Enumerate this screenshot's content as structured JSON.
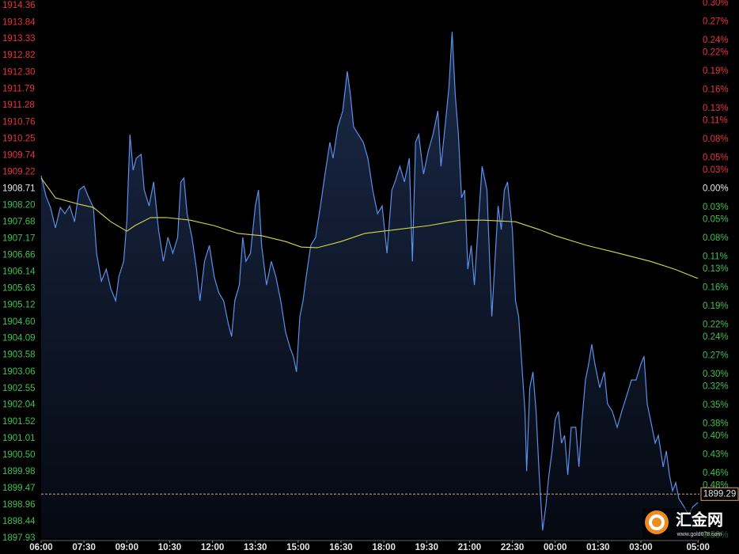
{
  "chart_data": {
    "type": "line",
    "xlim": [
      0,
      23.05
    ],
    "xticks": [
      {
        "value": 0,
        "label": "06:00"
      },
      {
        "value": 1.5,
        "label": "07:30"
      },
      {
        "value": 3,
        "label": "09:00"
      },
      {
        "value": 4.5,
        "label": "10:30"
      },
      {
        "value": 6,
        "label": "12:00"
      },
      {
        "value": 7.5,
        "label": "13:30"
      },
      {
        "value": 9,
        "label": "15:00"
      },
      {
        "value": 10.5,
        "label": "16:30"
      },
      {
        "value": 12,
        "label": "18:00"
      },
      {
        "value": 13.5,
        "label": "19:30"
      },
      {
        "value": 15,
        "label": "21:00"
      },
      {
        "value": 16.5,
        "label": "22:30"
      },
      {
        "value": 18,
        "label": "00:00"
      },
      {
        "value": 19.5,
        "label": "01:30"
      },
      {
        "value": 21,
        "label": "03:00"
      },
      {
        "value": 23,
        "label": "05:00"
      }
    ],
    "ylim": [
      1897.93,
      1914.36
    ],
    "yticks": [
      1914.36,
      1913.84,
      1913.33,
      1912.82,
      {
        "value": 1912.3,
        "label": "1912.30"
      },
      1911.79,
      1911.28,
      1910.76,
      1910.25,
      1909.74,
      1909.22,
      1908.71,
      {
        "value": 1908.2,
        "label": "1908.20"
      },
      1907.68,
      1907.17,
      1906.66,
      1906.14,
      1905.63,
      1905.12,
      {
        "value": 1904.6,
        "label": "1904.60"
      },
      1904.09,
      1903.58,
      1903.06,
      1902.55,
      1902.04,
      1901.52,
      1901.01,
      {
        "value": 1900.5,
        "label": "1900.50"
      },
      1899.98,
      1899.47,
      1898.96,
      1898.44,
      1897.93
    ],
    "y2lim": [
      -0.5648,
      0.296
    ],
    "y2ticks": [
      {
        "value": 0.3,
        "label": "0.30%"
      },
      {
        "value": 0.27,
        "label": "0.27%"
      },
      {
        "value": 0.24,
        "label": "0.24%"
      },
      {
        "value": 0.22,
        "label": "0.22%"
      },
      {
        "value": 0.19,
        "label": "0.19%"
      },
      {
        "value": 0.16,
        "label": "0.16%"
      },
      {
        "value": 0.13,
        "label": "0.13%"
      },
      {
        "value": 0.11,
        "label": "0.11%"
      },
      {
        "value": 0.08,
        "label": "0.08%"
      },
      {
        "value": 0.05,
        "label": "0.05%"
      },
      {
        "value": 0.03,
        "label": "0.03%"
      },
      {
        "value": 0,
        "label": "0.00%"
      },
      {
        "value": -0.03,
        "label": "0.03%"
      },
      {
        "value": -0.05,
        "label": "0.05%"
      },
      {
        "value": -0.08,
        "label": "0.08%"
      },
      {
        "value": -0.11,
        "label": "0.11%"
      },
      {
        "value": -0.13,
        "label": "0.13%"
      },
      {
        "value": -0.16,
        "label": "0.16%"
      },
      {
        "value": -0.19,
        "label": "0.19%"
      },
      {
        "value": -0.22,
        "label": "0.22%"
      },
      {
        "value": -0.24,
        "label": "0.24%"
      },
      {
        "value": -0.27,
        "label": "0.27%"
      },
      {
        "value": -0.3,
        "label": "0.30%"
      },
      {
        "value": -0.32,
        "label": "0.32%"
      },
      {
        "value": -0.35,
        "label": "0.35%"
      },
      {
        "value": -0.38,
        "label": "0.38%"
      },
      {
        "value": -0.4,
        "label": "0.40%"
      },
      {
        "value": -0.43,
        "label": "0.43%"
      },
      {
        "value": -0.46,
        "label": "0.46%"
      },
      {
        "value": -0.48,
        "label": "0.48%"
      },
      {
        "value": -0.56,
        "label": "0.56%"
      }
    ],
    "reference_price": 1908.71,
    "up_color": "#e8343c",
    "flat_color": "#e6e6e6",
    "down_color": "#3fc04f",
    "series": [
      {
        "color": "#5d8fe8",
        "x": [
          0,
          0.17,
          0.33,
          0.5,
          0.67,
          0.83,
          1,
          1.17,
          1.33,
          1.5,
          1.67,
          1.83,
          1.94,
          2.11,
          2.28,
          2.44,
          2.61,
          2.72,
          2.89,
          3,
          3.11,
          3.22,
          3.33,
          3.5,
          3.61,
          3.78,
          3.94,
          4.11,
          4.28,
          4.44,
          4.61,
          4.78,
          4.89,
          5,
          5.11,
          5.28,
          5.44,
          5.56,
          5.72,
          5.89,
          6.06,
          6.22,
          6.39,
          6.56,
          6.67,
          6.78,
          6.94,
          7.06,
          7.17,
          7.33,
          7.5,
          7.61,
          7.72,
          7.89,
          8.06,
          8.22,
          8.39,
          8.56,
          8.72,
          8.83,
          8.94,
          9.06,
          9.17,
          9.28,
          9.44,
          9.61,
          9.78,
          9.94,
          10.11,
          10.22,
          10.39,
          10.56,
          10.72,
          10.83,
          10.94,
          11.11,
          11.28,
          11.44,
          11.61,
          11.78,
          11.94,
          12.11,
          12.28,
          12.39,
          12.56,
          12.72,
          12.89,
          13,
          13.11,
          13.22,
          13.39,
          13.56,
          13.72,
          13.89,
          14,
          14.17,
          14.28,
          14.39,
          14.5,
          14.61,
          14.72,
          14.83,
          14.94,
          15.06,
          15.17,
          15.33,
          15.44,
          15.61,
          15.78,
          15.89,
          16,
          16.11,
          16.22,
          16.33,
          16.5,
          16.61,
          16.72,
          16.83,
          16.94,
          17,
          17.11,
          17.22,
          17.33,
          17.44,
          17.56,
          17.67,
          17.78,
          17.89,
          18,
          18.11,
          18.22,
          18.33,
          18.44,
          18.56,
          18.72,
          18.83,
          18.94,
          19.06,
          19.17,
          19.28,
          19.39,
          19.56,
          19.72,
          19.83,
          20,
          20.17,
          20.33,
          20.5,
          20.67,
          20.83,
          21,
          21.11,
          21.22,
          21.39,
          21.5,
          21.61,
          21.78,
          21.89,
          22,
          22.11,
          22.22,
          22.33,
          22.5,
          22.67,
          22.83,
          23
        ],
        "values": [
          1909.11,
          1908.48,
          1908.13,
          1907.5,
          1908.13,
          1907.94,
          1908.18,
          1907.69,
          1908.67,
          1908.79,
          1908.43,
          1908.13,
          1906.72,
          1905.86,
          1906.23,
          1905.62,
          1905.25,
          1905.99,
          1906.47,
          1907.69,
          1910.38,
          1909.28,
          1909.65,
          1909.77,
          1908.67,
          1908.18,
          1908.92,
          1907.45,
          1906.47,
          1907.21,
          1906.72,
          1907.21,
          1908.92,
          1909.04,
          1907.94,
          1907.21,
          1906.23,
          1905.25,
          1906.47,
          1906.96,
          1905.99,
          1905.5,
          1905.25,
          1904.52,
          1904.15,
          1905.25,
          1905.74,
          1907.21,
          1906.47,
          1906.72,
          1908.18,
          1908.67,
          1906.96,
          1905.74,
          1906.47,
          1905.99,
          1905.25,
          1904.28,
          1903.79,
          1903.54,
          1903.06,
          1904.77,
          1905.25,
          1905.99,
          1906.96,
          1907.21,
          1908.18,
          1909.16,
          1910.14,
          1909.65,
          1910.62,
          1911.11,
          1912.33,
          1911.6,
          1910.62,
          1910.38,
          1910.14,
          1909.65,
          1908.67,
          1907.94,
          1908.18,
          1906.72,
          1908.67,
          1908.92,
          1909.4,
          1908.92,
          1909.65,
          1906.47,
          1910.14,
          1910.38,
          1909.16,
          1909.89,
          1910.38,
          1911.11,
          1909.4,
          1910.87,
          1911.85,
          1913.55,
          1911.6,
          1910.38,
          1908.43,
          1908.67,
          1906.23,
          1906.96,
          1905.74,
          1907.94,
          1909.4,
          1908.67,
          1904.77,
          1906.47,
          1908.18,
          1907.45,
          1908.67,
          1908.92,
          1907.45,
          1905.25,
          1904.77,
          1903.3,
          1901.84,
          1900,
          1902.57,
          1903.06,
          1901.84,
          1899.88,
          1898.17,
          1898.91,
          1899.88,
          1900.62,
          1901.59,
          1901.84,
          1900.86,
          1901.1,
          1899.88,
          1901.35,
          1901.35,
          1900.13,
          1901.59,
          1902.81,
          1903.3,
          1903.91,
          1903.3,
          1902.57,
          1903.06,
          1902.08,
          1901.84,
          1901.35,
          1901.84,
          1902.32,
          1902.81,
          1902.81,
          1903.3,
          1903.54,
          1902.08,
          1901.35,
          1900.86,
          1901.1,
          1900.13,
          1900.62,
          1899.88,
          1899.39,
          1899.64,
          1899.15,
          1898.91,
          1898.66,
          1898.91,
          1899.03
        ]
      },
      {
        "color": "#d9d64a",
        "x": [
          0,
          0.5,
          1.33,
          1.83,
          2.44,
          3,
          3.28,
          3.83,
          4.39,
          5.22,
          6.06,
          6.89,
          7.72,
          8.56,
          9.11,
          9.67,
          10.5,
          11.33,
          12.44,
          13.56,
          14.67,
          15.5,
          16.61,
          17.44,
          18,
          19.11,
          20.22,
          21.33,
          22.17,
          23
        ],
        "values": [
          1909.04,
          1908.43,
          1908.23,
          1908.13,
          1907.69,
          1907.4,
          1907.57,
          1907.82,
          1907.82,
          1907.74,
          1907.57,
          1907.33,
          1907.26,
          1907.08,
          1906.91,
          1906.89,
          1907.08,
          1907.33,
          1907.45,
          1907.57,
          1907.74,
          1907.74,
          1907.69,
          1907.45,
          1907.26,
          1906.96,
          1906.72,
          1906.47,
          1906.23,
          1905.94
        ]
      }
    ],
    "current_price": 1899.29,
    "current_price_color": "#e0a070",
    "watermark": {
      "text": "汇金网",
      "url": "www.gold678.com"
    }
  }
}
